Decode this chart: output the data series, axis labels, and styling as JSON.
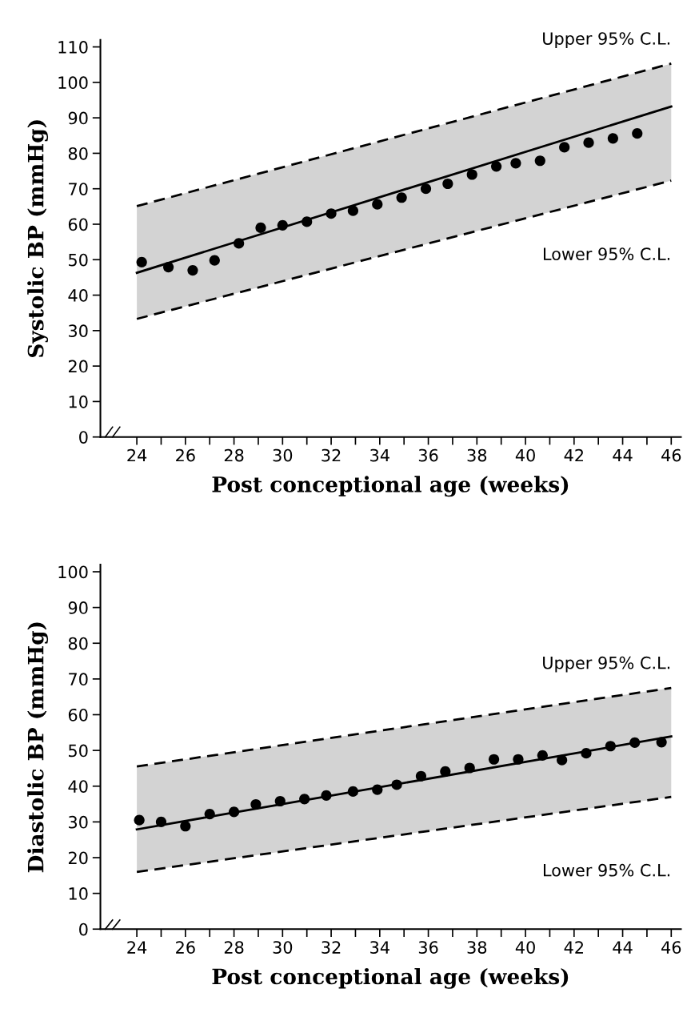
{
  "chart_data": [
    {
      "type": "scatter",
      "xlabel": "Post conceptional age (weeks)",
      "ylabel": "Systolic BP (mmHg)",
      "xlim": [
        22.5,
        46.4
      ],
      "ylim": [
        0,
        112
      ],
      "xticks": [
        24,
        {
          "value": 25,
          "label": null
        },
        26,
        {
          "value": 27,
          "label": null
        },
        28,
        {
          "value": 29,
          "label": null
        },
        30,
        {
          "value": 31,
          "label": null
        },
        32,
        {
          "value": 33,
          "label": null
        },
        34,
        {
          "value": 35,
          "label": null
        },
        36,
        {
          "value": 37,
          "label": null
        },
        38,
        {
          "value": 39,
          "label": null
        },
        40,
        {
          "value": 41,
          "label": null
        },
        42,
        {
          "value": 43,
          "label": null
        },
        44,
        {
          "value": 45,
          "label": null
        },
        46
      ],
      "yticks": [
        0,
        10,
        20,
        30,
        40,
        50,
        60,
        70,
        80,
        90,
        100,
        110
      ],
      "grid": false,
      "legend": false,
      "series": [
        {
          "type": "line",
          "color": "#000000",
          "line_style": "solid",
          "marker": "none",
          "x": [
            24,
            46
          ],
          "values": [
            46.3,
            93.2
          ],
          "lower": [
            33.3,
            72.3
          ],
          "upper": [
            65.1,
            105.3
          ]
        },
        {
          "type": "line",
          "name": "Upper 95% C.L.",
          "color": "#000000",
          "line_style": "dashed",
          "marker": "none",
          "x": [
            24,
            46
          ],
          "values": [
            65.1,
            105.3
          ]
        },
        {
          "type": "line",
          "name": "Lower 95% C.L.",
          "color": "#000000",
          "line_style": "dashed",
          "marker": "none",
          "x": [
            24,
            46
          ],
          "values": [
            33.3,
            72.3
          ]
        },
        {
          "color": "#000000",
          "marker": "circle",
          "x": [
            24.2,
            25.3,
            26.3,
            27.2,
            28.2,
            29.1,
            30.0,
            31.0,
            32.0,
            32.9,
            33.9,
            34.9,
            35.9,
            36.8,
            37.8,
            38.8,
            39.6,
            40.6,
            41.6,
            42.6,
            43.6,
            44.6
          ],
          "values": [
            49.3,
            47.9,
            47.0,
            49.8,
            54.6,
            59.0,
            59.7,
            60.7,
            63.0,
            63.8,
            65.6,
            67.5,
            70.0,
            71.4,
            74.0,
            76.3,
            77.2,
            77.9,
            81.7,
            83.0,
            84.2,
            85.6
          ]
        }
      ]
    },
    {
      "type": "scatter",
      "xlabel": "Post conceptional age (weeks)",
      "ylabel": "Diastolic BP (mmHg)",
      "xlim": [
        22.5,
        46.4
      ],
      "ylim": [
        0,
        102
      ],
      "xticks": [
        24,
        {
          "value": 25,
          "label": null
        },
        26,
        {
          "value": 27,
          "label": null
        },
        28,
        {
          "value": 29,
          "label": null
        },
        30,
        {
          "value": 31,
          "label": null
        },
        32,
        {
          "value": 33,
          "label": null
        },
        34,
        {
          "value": 35,
          "label": null
        },
        36,
        {
          "value": 37,
          "label": null
        },
        38,
        {
          "value": 39,
          "label": null
        },
        40,
        {
          "value": 41,
          "label": null
        },
        42,
        {
          "value": 43,
          "label": null
        },
        44,
        {
          "value": 45,
          "label": null
        },
        46
      ],
      "yticks": [
        0,
        10,
        20,
        30,
        40,
        50,
        60,
        70,
        80,
        90,
        100
      ],
      "grid": false,
      "legend": false,
      "series": [
        {
          "type": "line",
          "color": "#000000",
          "line_style": "solid",
          "marker": "none",
          "x": [
            24,
            46
          ],
          "values": [
            27.9,
            53.9
          ],
          "lower": [
            16.0,
            37.0
          ],
          "upper": [
            45.5,
            67.5
          ]
        },
        {
          "type": "line",
          "name": "Upper 95% C.L.",
          "color": "#000000",
          "line_style": "dashed",
          "marker": "none",
          "x": [
            24,
            46
          ],
          "values": [
            45.5,
            67.5
          ]
        },
        {
          "type": "line",
          "name": "Lower 95% C.L.",
          "color": "#000000",
          "line_style": "dashed",
          "marker": "none",
          "x": [
            24,
            46
          ],
          "values": [
            16.0,
            37.0
          ]
        },
        {
          "color": "#000000",
          "marker": "circle",
          "x": [
            24.1,
            25.0,
            26.0,
            27.0,
            28.0,
            28.9,
            29.9,
            30.9,
            31.8,
            32.9,
            33.9,
            34.7,
            35.7,
            36.7,
            37.7,
            38.7,
            39.7,
            40.7,
            41.5,
            42.5,
            43.5,
            44.5,
            45.6
          ],
          "values": [
            30.5,
            30.0,
            28.8,
            32.2,
            32.8,
            34.9,
            35.8,
            36.4,
            37.4,
            38.5,
            39.0,
            40.4,
            42.8,
            44.1,
            45.1,
            47.5,
            47.5,
            48.6,
            47.3,
            49.2,
            51.2,
            52.2,
            52.3
          ]
        }
      ]
    }
  ]
}
